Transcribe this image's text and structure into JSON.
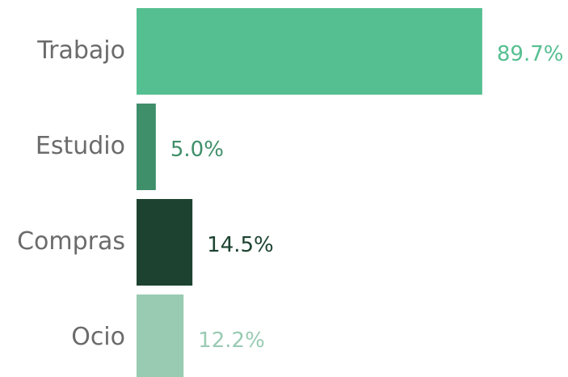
{
  "chart_data": {
    "type": "bar",
    "orientation": "horizontal",
    "categories": [
      "Trabajo",
      "Estudio",
      "Compras",
      "Ocio"
    ],
    "values": [
      89.7,
      5.0,
      14.5,
      12.2
    ],
    "value_labels": [
      "89.7%",
      "5.0%",
      "14.5%",
      "12.2%"
    ],
    "colors": [
      "#55bf91",
      "#3f8f6a",
      "#1d4330",
      "#99cbb3"
    ]
  }
}
